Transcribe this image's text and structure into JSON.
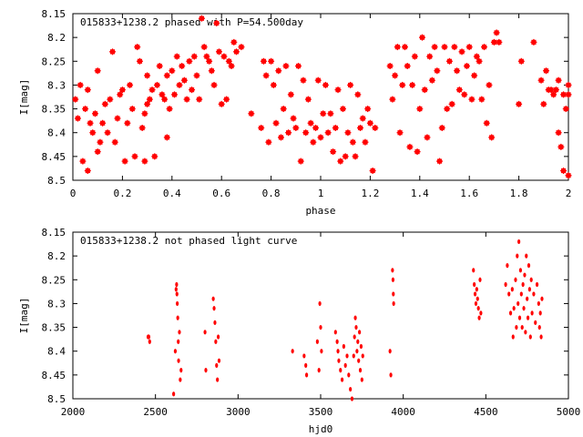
{
  "chart_data": [
    {
      "type": "scatter",
      "title": "015833+1238.2 phased with P=54.500day",
      "xlabel": "phase",
      "ylabel": "I[mag]",
      "xlim": [
        0,
        2
      ],
      "ylim": [
        8.5,
        8.15
      ],
      "y_inverted": true,
      "x_ticks": [
        "0",
        "0.2",
        "0.4",
        "0.6",
        "0.8",
        "1",
        "1.2",
        "1.4",
        "1.6",
        "1.8",
        "2"
      ],
      "y_ticks": [
        "8.15",
        "8.2",
        "8.25",
        "8.3",
        "8.35",
        "8.4",
        "8.45",
        "8.5"
      ],
      "marker_color": "#ff0000",
      "grid": false,
      "points": [
        [
          0.01,
          8.33
        ],
        [
          0.02,
          8.37
        ],
        [
          0.03,
          8.3
        ],
        [
          0.04,
          8.46
        ],
        [
          0.05,
          8.35
        ],
        [
          0.06,
          8.31
        ],
        [
          0.06,
          8.48
        ],
        [
          0.07,
          8.38
        ],
        [
          0.08,
          8.4
        ],
        [
          0.09,
          8.36
        ],
        [
          0.1,
          8.27
        ],
        [
          0.1,
          8.44
        ],
        [
          0.11,
          8.42
        ],
        [
          0.12,
          8.38
        ],
        [
          0.13,
          8.34
        ],
        [
          0.14,
          8.4
        ],
        [
          0.15,
          8.33
        ],
        [
          0.16,
          8.23
        ],
        [
          0.17,
          8.42
        ],
        [
          0.18,
          8.37
        ],
        [
          0.19,
          8.32
        ],
        [
          0.2,
          8.31
        ],
        [
          0.21,
          8.46
        ],
        [
          0.22,
          8.38
        ],
        [
          0.23,
          8.3
        ],
        [
          0.24,
          8.35
        ],
        [
          0.25,
          8.45
        ],
        [
          0.26,
          8.22
        ],
        [
          0.27,
          8.25
        ],
        [
          0.28,
          8.39
        ],
        [
          0.29,
          8.36
        ],
        [
          0.29,
          8.46
        ],
        [
          0.3,
          8.28
        ],
        [
          0.3,
          8.34
        ],
        [
          0.31,
          8.33
        ],
        [
          0.32,
          8.31
        ],
        [
          0.33,
          8.45
        ],
        [
          0.34,
          8.3
        ],
        [
          0.35,
          8.26
        ],
        [
          0.36,
          8.32
        ],
        [
          0.37,
          8.33
        ],
        [
          0.38,
          8.41
        ],
        [
          0.38,
          8.28
        ],
        [
          0.39,
          8.35
        ],
        [
          0.4,
          8.27
        ],
        [
          0.41,
          8.32
        ],
        [
          0.42,
          8.24
        ],
        [
          0.43,
          8.3
        ],
        [
          0.44,
          8.26
        ],
        [
          0.45,
          8.29
        ],
        [
          0.46,
          8.33
        ],
        [
          0.47,
          8.25
        ],
        [
          0.48,
          8.31
        ],
        [
          0.49,
          8.24
        ],
        [
          0.5,
          8.28
        ],
        [
          0.51,
          8.33
        ],
        [
          0.52,
          8.16
        ],
        [
          0.53,
          8.22
        ],
        [
          0.54,
          8.24
        ],
        [
          0.55,
          8.25
        ],
        [
          0.56,
          8.27
        ],
        [
          0.57,
          8.3
        ],
        [
          0.58,
          8.17
        ],
        [
          0.59,
          8.23
        ],
        [
          0.6,
          8.34
        ],
        [
          0.61,
          8.24
        ],
        [
          0.62,
          8.33
        ],
        [
          0.63,
          8.25
        ],
        [
          0.64,
          8.26
        ],
        [
          0.65,
          8.21
        ],
        [
          0.66,
          8.23
        ],
        [
          0.68,
          8.22
        ],
        [
          0.72,
          8.36
        ],
        [
          0.76,
          8.39
        ],
        [
          0.77,
          8.25
        ],
        [
          0.78,
          8.28
        ],
        [
          0.79,
          8.42
        ],
        [
          0.8,
          8.25
        ],
        [
          0.81,
          8.3
        ],
        [
          0.82,
          8.38
        ],
        [
          0.83,
          8.27
        ],
        [
          0.84,
          8.41
        ],
        [
          0.85,
          8.35
        ],
        [
          0.86,
          8.26
        ],
        [
          0.87,
          8.4
        ],
        [
          0.88,
          8.32
        ],
        [
          0.89,
          8.37
        ],
        [
          0.9,
          8.39
        ],
        [
          0.91,
          8.26
        ],
        [
          0.92,
          8.46
        ],
        [
          0.93,
          8.29
        ],
        [
          0.94,
          8.4
        ],
        [
          0.95,
          8.33
        ],
        [
          0.96,
          8.38
        ],
        [
          0.97,
          8.42
        ],
        [
          0.98,
          8.39
        ],
        [
          0.99,
          8.29
        ],
        [
          1.0,
          8.41
        ],
        [
          1.01,
          8.36
        ],
        [
          1.02,
          8.3
        ],
        [
          1.03,
          8.4
        ],
        [
          1.04,
          8.36
        ],
        [
          1.05,
          8.44
        ],
        [
          1.06,
          8.39
        ],
        [
          1.07,
          8.31
        ],
        [
          1.08,
          8.46
        ],
        [
          1.09,
          8.35
        ],
        [
          1.1,
          8.45
        ],
        [
          1.11,
          8.4
        ],
        [
          1.12,
          8.3
        ],
        [
          1.13,
          8.42
        ],
        [
          1.14,
          8.45
        ],
        [
          1.15,
          8.32
        ],
        [
          1.16,
          8.39
        ],
        [
          1.17,
          8.37
        ],
        [
          1.18,
          8.42
        ],
        [
          1.19,
          8.35
        ],
        [
          1.2,
          8.38
        ],
        [
          1.21,
          8.48
        ],
        [
          1.22,
          8.39
        ],
        [
          1.28,
          8.26
        ],
        [
          1.29,
          8.33
        ],
        [
          1.3,
          8.28
        ],
        [
          1.31,
          8.22
        ],
        [
          1.32,
          8.4
        ],
        [
          1.33,
          8.3
        ],
        [
          1.34,
          8.22
        ],
        [
          1.35,
          8.26
        ],
        [
          1.36,
          8.43
        ],
        [
          1.37,
          8.3
        ],
        [
          1.38,
          8.24
        ],
        [
          1.39,
          8.44
        ],
        [
          1.4,
          8.35
        ],
        [
          1.41,
          8.2
        ],
        [
          1.42,
          8.31
        ],
        [
          1.43,
          8.41
        ],
        [
          1.44,
          8.24
        ],
        [
          1.45,
          8.29
        ],
        [
          1.46,
          8.22
        ],
        [
          1.47,
          8.27
        ],
        [
          1.48,
          8.46
        ],
        [
          1.49,
          8.39
        ],
        [
          1.5,
          8.22
        ],
        [
          1.51,
          8.35
        ],
        [
          1.52,
          8.25
        ],
        [
          1.53,
          8.34
        ],
        [
          1.54,
          8.22
        ],
        [
          1.55,
          8.27
        ],
        [
          1.56,
          8.31
        ],
        [
          1.57,
          8.23
        ],
        [
          1.58,
          8.32
        ],
        [
          1.59,
          8.26
        ],
        [
          1.6,
          8.22
        ],
        [
          1.61,
          8.33
        ],
        [
          1.62,
          8.28
        ],
        [
          1.63,
          8.24
        ],
        [
          1.64,
          8.25
        ],
        [
          1.65,
          8.33
        ],
        [
          1.66,
          8.22
        ],
        [
          1.67,
          8.38
        ],
        [
          1.68,
          8.3
        ],
        [
          1.69,
          8.41
        ],
        [
          1.7,
          8.21
        ],
        [
          1.71,
          8.19
        ],
        [
          1.72,
          8.21
        ],
        [
          1.8,
          8.34
        ],
        [
          1.81,
          8.25
        ],
        [
          1.86,
          8.21
        ],
        [
          1.89,
          8.29
        ],
        [
          1.9,
          8.34
        ],
        [
          1.91,
          8.27
        ],
        [
          1.92,
          8.31
        ],
        [
          1.93,
          8.31
        ],
        [
          1.94,
          8.32
        ],
        [
          1.95,
          8.31
        ],
        [
          1.96,
          8.29
        ],
        [
          1.96,
          8.4
        ],
        [
          1.97,
          8.43
        ],
        [
          1.98,
          8.32
        ],
        [
          1.98,
          8.48
        ],
        [
          1.99,
          8.35
        ],
        [
          2.0,
          8.3
        ],
        [
          2.0,
          8.49
        ],
        [
          2.0,
          8.32
        ]
      ]
    },
    {
      "type": "scatter",
      "title": "015833+1238.2 not phased light curve",
      "xlabel": "hjd0",
      "ylabel": "I[mag]",
      "xlim": [
        2000,
        5000
      ],
      "ylim": [
        8.5,
        8.15
      ],
      "y_inverted": true,
      "x_ticks": [
        "2000",
        "2500",
        "3000",
        "3500",
        "4000",
        "4500",
        "5000"
      ],
      "y_ticks": [
        "8.15",
        "8.2",
        "8.25",
        "8.3",
        "8.35",
        "8.4",
        "8.45",
        "8.5"
      ],
      "marker_color": "#ff0000",
      "grid": false,
      "points": [
        [
          2455,
          8.37
        ],
        [
          2460,
          8.37
        ],
        [
          2465,
          8.38
        ],
        [
          2610,
          8.49
        ],
        [
          2620,
          8.4
        ],
        [
          2625,
          8.27
        ],
        [
          2628,
          8.26
        ],
        [
          2630,
          8.28
        ],
        [
          2632,
          8.3
        ],
        [
          2635,
          8.33
        ],
        [
          2638,
          8.38
        ],
        [
          2640,
          8.42
        ],
        [
          2645,
          8.36
        ],
        [
          2650,
          8.46
        ],
        [
          2655,
          8.44
        ],
        [
          2800,
          8.36
        ],
        [
          2805,
          8.44
        ],
        [
          2850,
          8.29
        ],
        [
          2855,
          8.31
        ],
        [
          2860,
          8.34
        ],
        [
          2865,
          8.38
        ],
        [
          2870,
          8.43
        ],
        [
          2875,
          8.46
        ],
        [
          2880,
          8.37
        ],
        [
          2885,
          8.42
        ],
        [
          3330,
          8.4
        ],
        [
          3400,
          8.41
        ],
        [
          3410,
          8.43
        ],
        [
          3415,
          8.45
        ],
        [
          3480,
          8.38
        ],
        [
          3490,
          8.44
        ],
        [
          3495,
          8.3
        ],
        [
          3500,
          8.35
        ],
        [
          3505,
          8.4
        ],
        [
          3590,
          8.36
        ],
        [
          3600,
          8.38
        ],
        [
          3605,
          8.4
        ],
        [
          3610,
          8.42
        ],
        [
          3620,
          8.44
        ],
        [
          3630,
          8.46
        ],
        [
          3640,
          8.39
        ],
        [
          3650,
          8.43
        ],
        [
          3660,
          8.41
        ],
        [
          3670,
          8.45
        ],
        [
          3680,
          8.48
        ],
        [
          3690,
          8.5
        ],
        [
          3700,
          8.41
        ],
        [
          3705,
          8.37
        ],
        [
          3710,
          8.33
        ],
        [
          3715,
          8.35
        ],
        [
          3720,
          8.4
        ],
        [
          3725,
          8.38
        ],
        [
          3730,
          8.42
        ],
        [
          3735,
          8.36
        ],
        [
          3740,
          8.44
        ],
        [
          3745,
          8.39
        ],
        [
          3750,
          8.46
        ],
        [
          3755,
          8.41
        ],
        [
          3920,
          8.4
        ],
        [
          3925,
          8.45
        ],
        [
          3935,
          8.23
        ],
        [
          3938,
          8.25
        ],
        [
          3940,
          8.28
        ],
        [
          3942,
          8.3
        ],
        [
          4425,
          8.23
        ],
        [
          4430,
          8.26
        ],
        [
          4435,
          8.28
        ],
        [
          4440,
          8.3
        ],
        [
          4445,
          8.27
        ],
        [
          4450,
          8.29
        ],
        [
          4455,
          8.31
        ],
        [
          4460,
          8.33
        ],
        [
          4465,
          8.25
        ],
        [
          4470,
          8.32
        ],
        [
          4620,
          8.26
        ],
        [
          4630,
          8.22
        ],
        [
          4640,
          8.28
        ],
        [
          4650,
          8.32
        ],
        [
          4660,
          8.27
        ],
        [
          4665,
          8.37
        ],
        [
          4670,
          8.31
        ],
        [
          4680,
          8.25
        ],
        [
          4685,
          8.35
        ],
        [
          4690,
          8.2
        ],
        [
          4695,
          8.3
        ],
        [
          4700,
          8.17
        ],
        [
          4705,
          8.33
        ],
        [
          4710,
          8.23
        ],
        [
          4715,
          8.28
        ],
        [
          4720,
          8.35
        ],
        [
          4725,
          8.26
        ],
        [
          4730,
          8.31
        ],
        [
          4735,
          8.24
        ],
        [
          4740,
          8.36
        ],
        [
          4745,
          8.2
        ],
        [
          4750,
          8.29
        ],
        [
          4755,
          8.33
        ],
        [
          4760,
          8.22
        ],
        [
          4765,
          8.27
        ],
        [
          4770,
          8.37
        ],
        [
          4775,
          8.25
        ],
        [
          4780,
          8.32
        ],
        [
          4790,
          8.28
        ],
        [
          4800,
          8.34
        ],
        [
          4810,
          8.26
        ],
        [
          4820,
          8.3
        ],
        [
          4825,
          8.35
        ],
        [
          4830,
          8.32
        ],
        [
          4835,
          8.37
        ],
        [
          4840,
          8.29
        ]
      ]
    }
  ]
}
